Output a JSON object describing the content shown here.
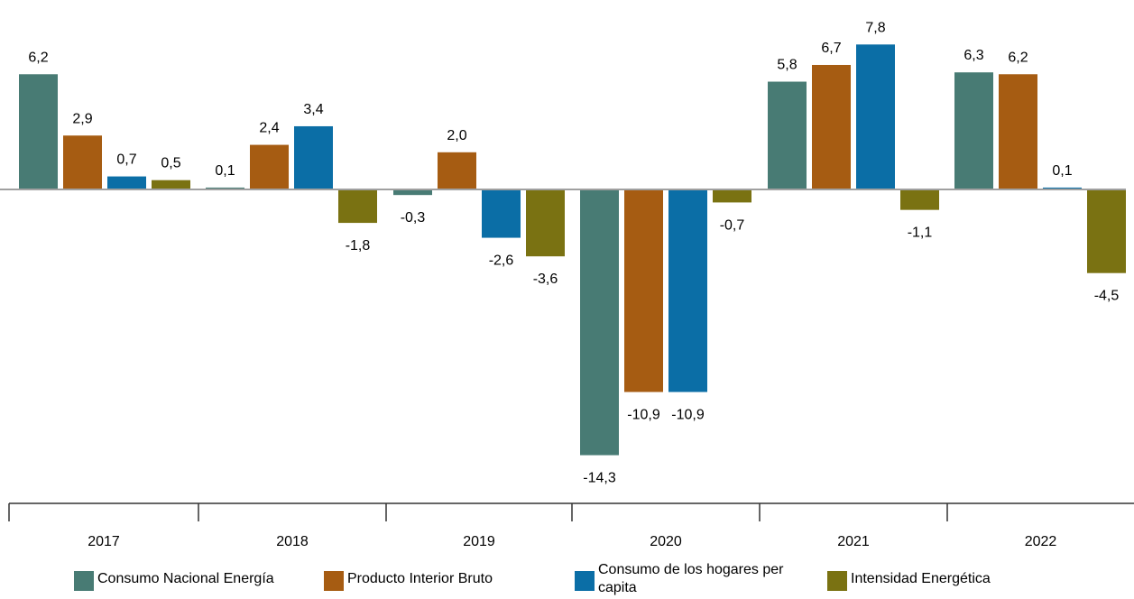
{
  "chart_data": {
    "type": "bar",
    "categories": [
      "2017",
      "2018",
      "2019",
      "2020",
      "2021",
      "2022"
    ],
    "series": [
      {
        "name": "Consumo Nacional Energía",
        "color": "#487b74",
        "values": [
          6.2,
          0.1,
          -0.3,
          -14.3,
          5.8,
          6.3
        ],
        "labels": [
          "6,2",
          "0,1",
          "-0,3",
          "-14,3",
          "5,8",
          "6,3"
        ]
      },
      {
        "name": "Producto Interior Bruto",
        "color": "#a65c12",
        "values": [
          2.9,
          2.4,
          2.0,
          -10.9,
          6.7,
          6.2
        ],
        "labels": [
          "2,9",
          "2,4",
          "2,0",
          "-10,9",
          "6,7",
          "6,2"
        ]
      },
      {
        "name": "Consumo de los hogares per capita",
        "color": "#0b6ea6",
        "values": [
          0.7,
          3.4,
          -2.6,
          -10.9,
          7.8,
          0.1
        ],
        "labels": [
          "0,7",
          "3,4",
          "-2,6",
          "-10,9",
          "7,8",
          "0,1"
        ]
      },
      {
        "name": "Intensidad Energética",
        "color": "#7a7212",
        "values": [
          0.5,
          -1.8,
          -3.6,
          -0.7,
          -1.1,
          -4.5
        ],
        "labels": [
          "0,5",
          "-1,8",
          "-3,6",
          "-0,7",
          "-1,1",
          "-4,5"
        ]
      }
    ],
    "ylim": [
      -14.3,
      7.8
    ],
    "grid": false,
    "legend_position": "bottom"
  },
  "legend": {
    "items": [
      {
        "label": "Consumo Nacional Energía",
        "color": "#487b74"
      },
      {
        "label": "Producto Interior Bruto",
        "color": "#a65c12"
      },
      {
        "label": "Consumo de los hogares per capita",
        "color": "#0b6ea6"
      },
      {
        "label": "Intensidad Energética",
        "color": "#7a7212"
      }
    ]
  }
}
